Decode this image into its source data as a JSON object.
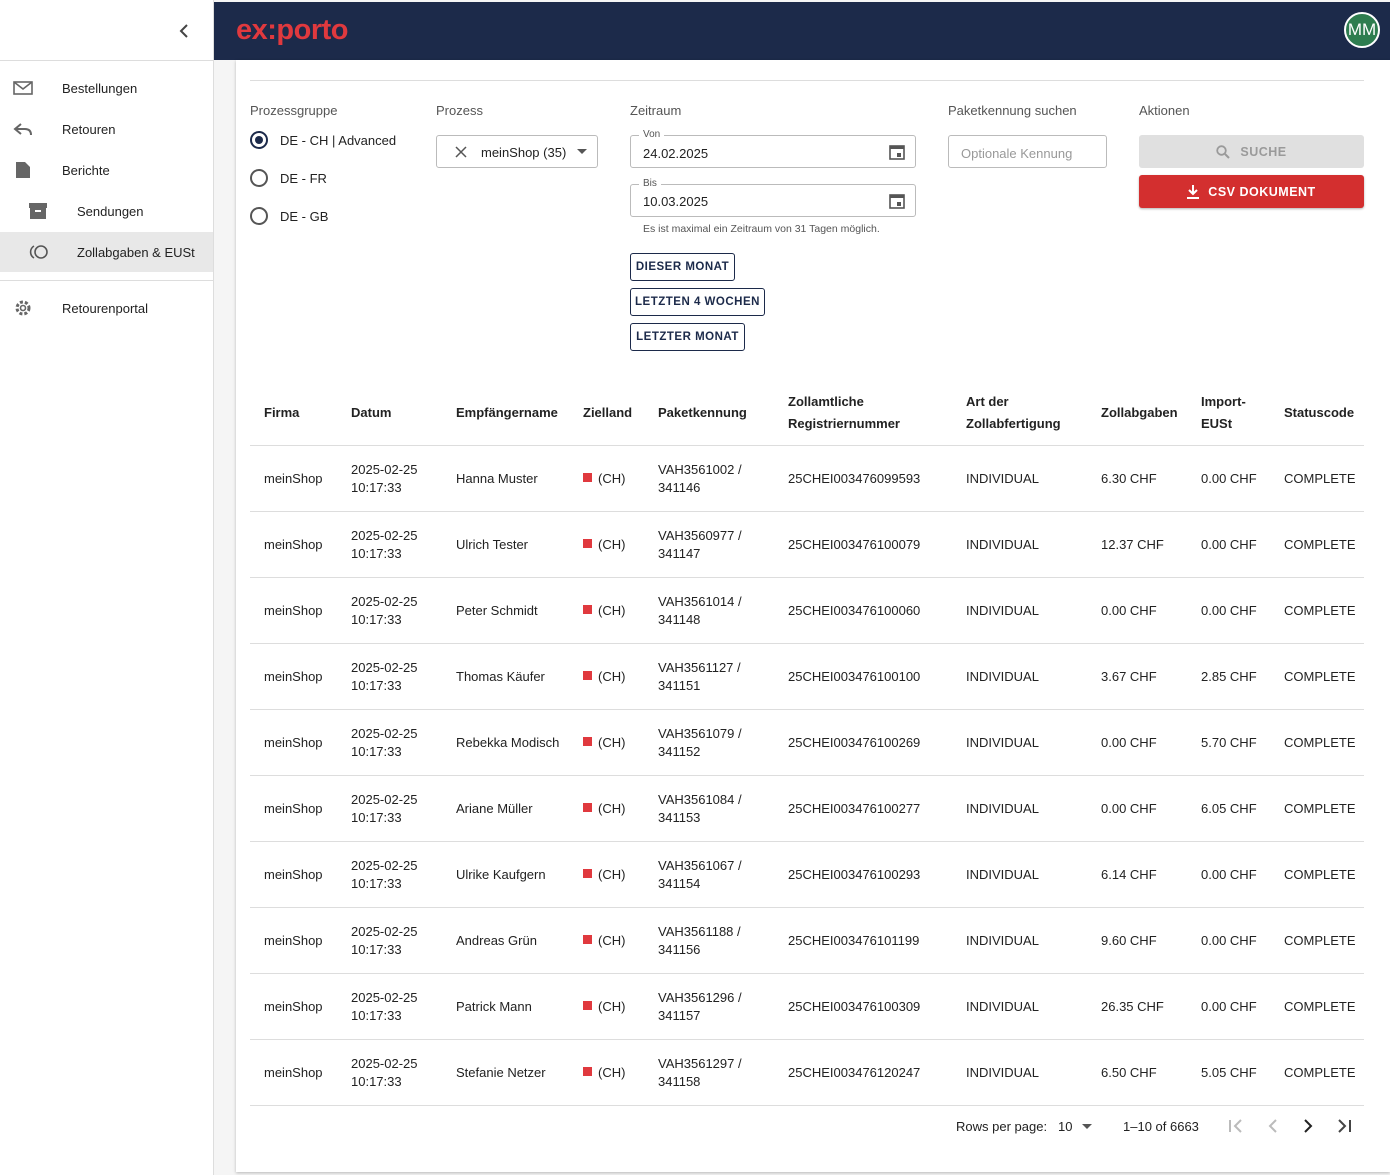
{
  "sidebar": {
    "items": [
      "Bestellungen",
      "Retouren",
      "Berichte",
      "Sendungen",
      "Zollabgaben & EUSt",
      "Retourenportal"
    ]
  },
  "header": {
    "logo": "ex:porto",
    "avatar": "MM"
  },
  "filters": {
    "group_label": "Prozessgruppe",
    "groups": [
      "DE - CH | Advanced",
      "DE - FR",
      "DE - GB"
    ],
    "process_label": "Prozess",
    "process_value": "meinShop (35)",
    "period_label": "Zeitraum",
    "from_label": "Von",
    "from_value": "24.02.2025",
    "to_label": "Bis",
    "to_value": "10.03.2025",
    "period_hint": "Es ist maximal ein Zeitraum von 31 Tagen möglich.",
    "presets": [
      "DIESER MONAT",
      "LETZTEN 4 WOCHEN",
      "LETZTER MONAT"
    ],
    "search_label": "Paketkennung suchen",
    "search_placeholder": "Optionale Kennung",
    "actions_label": "Aktionen",
    "search_button": "SUCHE",
    "csv_button": "CSV DOKUMENT"
  },
  "table": {
    "columns": [
      "Firma",
      "Datum",
      "Empfängername",
      "Zielland",
      "Paketkennung",
      "Zollamtliche Registriernummer",
      "Art der Zollabfertigung",
      "Zollabgaben",
      "Import-EUSt",
      "Statuscode"
    ],
    "rows": [
      [
        "meinShop",
        "2025-02-25 10:17:33",
        "Hanna Muster",
        "(CH)",
        "VAH3561002 / 341146",
        "25CHEI003476099593",
        "INDIVIDUAL",
        "6.30 CHF",
        "0.00 CHF",
        "COMPLETE"
      ],
      [
        "meinShop",
        "2025-02-25 10:17:33",
        "Ulrich Tester",
        "(CH)",
        "VAH3560977 / 341147",
        "25CHEI003476100079",
        "INDIVIDUAL",
        "12.37 CHF",
        "0.00 CHF",
        "COMPLETE"
      ],
      [
        "meinShop",
        "2025-02-25 10:17:33",
        "Peter Schmidt",
        "(CH)",
        "VAH3561014 / 341148",
        "25CHEI003476100060",
        "INDIVIDUAL",
        "0.00 CHF",
        "0.00 CHF",
        "COMPLETE"
      ],
      [
        "meinShop",
        "2025-02-25 10:17:33",
        "Thomas Käufer",
        "(CH)",
        "VAH3561127 / 341151",
        "25CHEI003476100100",
        "INDIVIDUAL",
        "3.67 CHF",
        "2.85 CHF",
        "COMPLETE"
      ],
      [
        "meinShop",
        "2025-02-25 10:17:33",
        "Rebekka Modisch",
        "(CH)",
        "VAH3561079 / 341152",
        "25CHEI003476100269",
        "INDIVIDUAL",
        "0.00 CHF",
        "5.70 CHF",
        "COMPLETE"
      ],
      [
        "meinShop",
        "2025-02-25 10:17:33",
        "Ariane Müller",
        "(CH)",
        "VAH3561084 / 341153",
        "25CHEI003476100277",
        "INDIVIDUAL",
        "0.00 CHF",
        "6.05 CHF",
        "COMPLETE"
      ],
      [
        "meinShop",
        "2025-02-25 10:17:33",
        "Ulrike Kaufgern",
        "(CH)",
        "VAH3561067 / 341154",
        "25CHEI003476100293",
        "INDIVIDUAL",
        "6.14 CHF",
        "0.00 CHF",
        "COMPLETE"
      ],
      [
        "meinShop",
        "2025-02-25 10:17:33",
        "Andreas Grün",
        "(CH)",
        "VAH3561188 / 341156",
        "25CHEI003476101199",
        "INDIVIDUAL",
        "9.60 CHF",
        "0.00 CHF",
        "COMPLETE"
      ],
      [
        "meinShop",
        "2025-02-25 10:17:33",
        "Patrick Mann",
        "(CH)",
        "VAH3561296 / 341157",
        "25CHEI003476100309",
        "INDIVIDUAL",
        "26.35 CHF",
        "0.00 CHF",
        "COMPLETE"
      ],
      [
        "meinShop",
        "2025-02-25 10:17:33",
        "Stefanie Netzer",
        "(CH)",
        "VAH3561297 / 341158",
        "25CHEI003476120247",
        "INDIVIDUAL",
        "6.50 CHF",
        "5.05 CHF",
        "COMPLETE"
      ]
    ]
  },
  "pagination": {
    "rows_per_page_label": "Rows per page:",
    "rows_per_page": "10",
    "range": "1–10 of 6663"
  }
}
